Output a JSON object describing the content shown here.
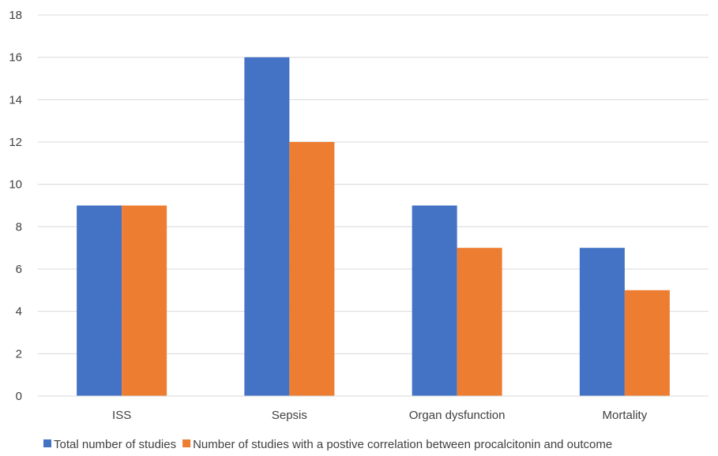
{
  "chart_data": {
    "type": "bar",
    "title": "",
    "xlabel": "",
    "ylabel": "",
    "categories": [
      "ISS",
      "Sepsis",
      "Organ dysfunction",
      "Mortality"
    ],
    "series": [
      {
        "name": "Total number of studies",
        "color": "#4472C4",
        "values": [
          9,
          16,
          9,
          7
        ]
      },
      {
        "name": "Number of studies with a postive correlation between procalcitonin and outcome",
        "color": "#ED7D31",
        "values": [
          9,
          12,
          7,
          5
        ]
      }
    ],
    "ylim": [
      0,
      18
    ],
    "yticks": [
      0,
      2,
      4,
      6,
      8,
      10,
      12,
      14,
      16,
      18
    ],
    "grid": true,
    "legend_position": "bottom"
  }
}
